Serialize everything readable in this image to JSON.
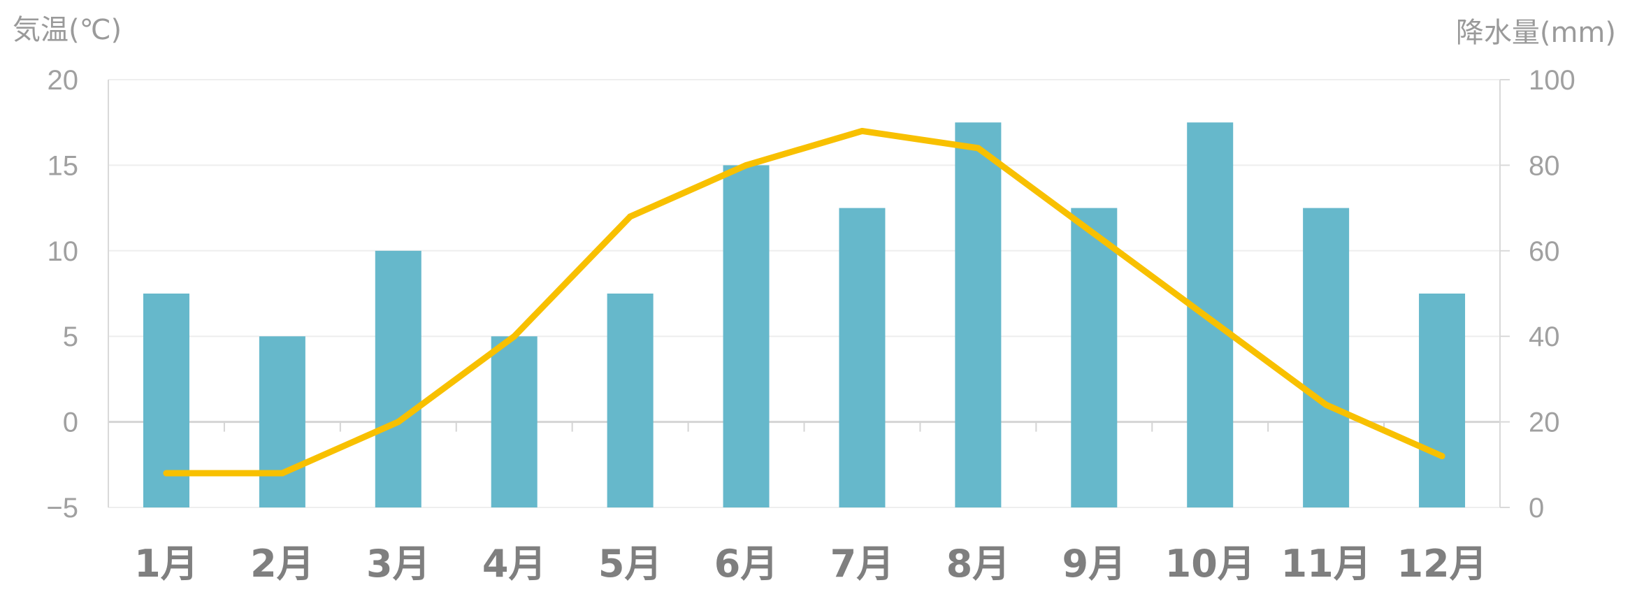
{
  "chart_data": {
    "type": "bar+line",
    "categories": [
      "1月",
      "2月",
      "3月",
      "4月",
      "5月",
      "6月",
      "7月",
      "8月",
      "9月",
      "10月",
      "11月",
      "12月"
    ],
    "series": [
      {
        "type": "bar",
        "axis": "right",
        "values": [
          50,
          40,
          60,
          40,
          50,
          80,
          70,
          90,
          70,
          90,
          70,
          50
        ],
        "color": "#66b8cb"
      },
      {
        "type": "line",
        "axis": "left",
        "values": [
          -3,
          -3,
          0,
          5,
          12,
          15,
          17,
          16,
          11,
          6,
          1,
          -2
        ],
        "color": "#f8c000"
      }
    ],
    "left_axis": {
      "label": "気温(℃)",
      "ylim": [
        -5,
        20
      ],
      "ticks": [
        "20",
        "15",
        "10",
        "5",
        "0",
        "−5"
      ],
      "tick_values": [
        20,
        15,
        10,
        5,
        0,
        -5
      ]
    },
    "right_axis": {
      "label": "降水量(mm)",
      "ylim": [
        0,
        100
      ],
      "ticks": [
        "100",
        "80",
        "60",
        "40",
        "20",
        "0"
      ],
      "tick_values": [
        100,
        80,
        60,
        40,
        20,
        0
      ]
    },
    "grid": true,
    "legend": "none",
    "colors": {
      "grid": "#eeeeee",
      "zero_line": "#d4d4d4",
      "axis_line": "#d9d9d9"
    }
  }
}
